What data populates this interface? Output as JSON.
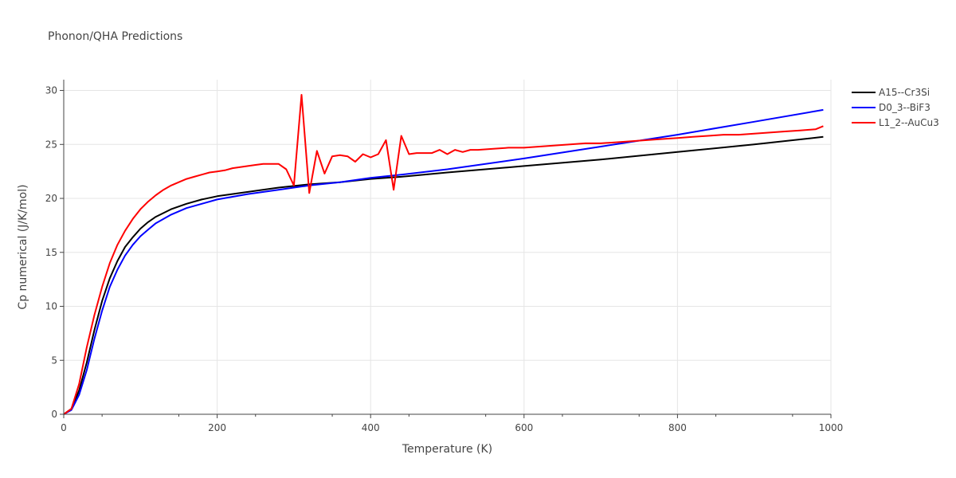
{
  "chart_data": {
    "type": "line",
    "title": "Phonon/QHA Predictions",
    "xlabel": "Temperature (K)",
    "ylabel": "Cp numerical (J/K/mol)",
    "xlim": [
      0,
      1000
    ],
    "ylim": [
      0,
      31
    ],
    "xticks": [
      0,
      200,
      400,
      600,
      800,
      1000
    ],
    "yticks": [
      0,
      5,
      10,
      15,
      20,
      25,
      30
    ],
    "grid": true,
    "legend_position": "top-right",
    "series": [
      {
        "name": "A15--Cr3Si",
        "color": "#000000",
        "x": [
          0,
          10,
          20,
          30,
          40,
          50,
          60,
          70,
          80,
          90,
          100,
          110,
          120,
          140,
          160,
          180,
          200,
          240,
          280,
          320,
          360,
          400,
          440,
          500,
          600,
          700,
          800,
          900,
          990
        ],
        "y": [
          0,
          0.5,
          2.2,
          4.8,
          7.8,
          10.5,
          12.6,
          14.2,
          15.5,
          16.4,
          17.2,
          17.8,
          18.3,
          19.0,
          19.5,
          19.9,
          20.2,
          20.6,
          21.0,
          21.3,
          21.5,
          21.8,
          22.0,
          22.4,
          23.0,
          23.6,
          24.3,
          25.0,
          25.7
        ]
      },
      {
        "name": "D0_3--BiF3",
        "color": "#0000ff",
        "x": [
          0,
          10,
          20,
          30,
          40,
          50,
          60,
          70,
          80,
          90,
          100,
          110,
          120,
          140,
          160,
          180,
          200,
          240,
          280,
          320,
          360,
          400,
          440,
          500,
          600,
          700,
          800,
          900,
          990
        ],
        "y": [
          0,
          0.4,
          1.8,
          4.1,
          7.0,
          9.6,
          11.8,
          13.4,
          14.7,
          15.7,
          16.5,
          17.1,
          17.7,
          18.5,
          19.1,
          19.5,
          19.9,
          20.4,
          20.8,
          21.2,
          21.5,
          21.9,
          22.2,
          22.7,
          23.7,
          24.8,
          25.9,
          27.1,
          28.2
        ]
      },
      {
        "name": "L1_2--AuCu3",
        "color": "#ff0000",
        "x": [
          0,
          10,
          20,
          30,
          40,
          50,
          60,
          70,
          80,
          90,
          100,
          110,
          120,
          130,
          140,
          150,
          160,
          170,
          180,
          190,
          200,
          210,
          220,
          230,
          240,
          250,
          260,
          270,
          280,
          290,
          300,
          310,
          320,
          330,
          340,
          350,
          360,
          370,
          380,
          390,
          400,
          410,
          420,
          430,
          440,
          450,
          460,
          470,
          480,
          490,
          500,
          510,
          520,
          530,
          540,
          560,
          580,
          600,
          620,
          640,
          660,
          680,
          700,
          720,
          740,
          760,
          780,
          800,
          820,
          840,
          860,
          880,
          900,
          920,
          940,
          960,
          980,
          990
        ],
        "y": [
          0,
          0.5,
          2.8,
          6.2,
          9.2,
          11.8,
          14.0,
          15.7,
          17.0,
          18.1,
          19.0,
          19.7,
          20.3,
          20.8,
          21.2,
          21.5,
          21.8,
          22.0,
          22.2,
          22.4,
          22.5,
          22.6,
          22.8,
          22.9,
          23.0,
          23.1,
          23.2,
          23.2,
          23.2,
          22.7,
          21.2,
          29.6,
          20.5,
          24.4,
          22.3,
          23.9,
          24.0,
          23.9,
          23.4,
          24.1,
          23.8,
          24.1,
          25.4,
          20.8,
          25.8,
          24.1,
          24.2,
          24.2,
          24.2,
          24.5,
          24.1,
          24.5,
          24.3,
          24.5,
          24.5,
          24.6,
          24.7,
          24.7,
          24.8,
          24.9,
          25.0,
          25.1,
          25.1,
          25.2,
          25.3,
          25.4,
          25.5,
          25.6,
          25.7,
          25.8,
          25.9,
          25.9,
          26.0,
          26.1,
          26.2,
          26.3,
          26.4,
          26.7
        ]
      }
    ]
  }
}
